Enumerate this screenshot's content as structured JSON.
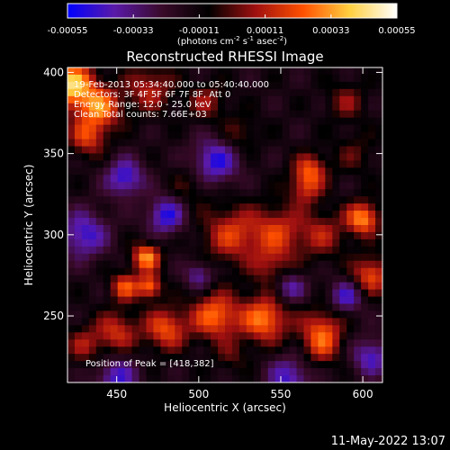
{
  "chart_data": {
    "type": "heatmap",
    "title": "Reconstructed RHESSI Image",
    "xlabel": "Heliocentric X (arcsec)",
    "ylabel": "Heliocentric Y (arcsec)",
    "xlim": [
      420,
      612
    ],
    "ylim": [
      209,
      403
    ],
    "x_ticks": [
      450,
      500,
      550,
      600
    ],
    "y_ticks": [
      250,
      300,
      350,
      400
    ],
    "colorbar": {
      "range": [
        -0.00055,
        0.00055
      ],
      "tick_values": [
        -0.00055,
        -0.00033,
        -0.00011,
        0.00011,
        0.00033,
        0.00055
      ],
      "tick_labels": [
        "-0.00055",
        "-0.00033",
        "-0.00011",
        "0.00011",
        "0.00033",
        "0.00055"
      ],
      "unit_label": "(photons cm",
      "unit_exp1": "-2",
      "unit_mid": " s",
      "unit_exp2": "-1",
      "unit_mid2": " asec",
      "unit_exp3": "-2",
      "unit_end": ")",
      "colors": [
        "#0000ff",
        "#5a1aa8",
        "#3a0a2a",
        "#000000",
        "#a01010",
        "#ff5000",
        "#ffd040",
        "#ffffff"
      ]
    },
    "annotations": [
      "19-Feb-2013 05:34:40.000 to 05:40:40.000",
      "Detectors: 3F 4F 5F 6F 7F 8F, Att 0",
      "Energy Range: 12.0 - 25.0 keV",
      "Clean     Total counts: 7.66E+03"
    ],
    "peak_label": "Position of Peak = [418,382]",
    "blobs": [
      {
        "x": 422,
        "y": 392,
        "v": 0.00055,
        "s": 10
      },
      {
        "x": 440,
        "y": 378,
        "v": 0.0004,
        "s": 9
      },
      {
        "x": 432,
        "y": 360,
        "v": 0.0003,
        "s": 8
      },
      {
        "x": 470,
        "y": 390,
        "v": 0.00025,
        "s": 10
      },
      {
        "x": 505,
        "y": 382,
        "v": 0.0002,
        "s": 8
      },
      {
        "x": 525,
        "y": 362,
        "v": 0.00015,
        "s": 8
      },
      {
        "x": 568,
        "y": 340,
        "v": 0.00032,
        "s": 7
      },
      {
        "x": 565,
        "y": 328,
        "v": 0.00025,
        "s": 7
      },
      {
        "x": 590,
        "y": 382,
        "v": 0.00018,
        "s": 8
      },
      {
        "x": 468,
        "y": 286,
        "v": 0.00045,
        "s": 6
      },
      {
        "x": 455,
        "y": 268,
        "v": 0.00035,
        "s": 6
      },
      {
        "x": 470,
        "y": 268,
        "v": 0.0004,
        "s": 5
      },
      {
        "x": 520,
        "y": 300,
        "v": 0.0003,
        "s": 12
      },
      {
        "x": 548,
        "y": 302,
        "v": 0.00028,
        "s": 11
      },
      {
        "x": 575,
        "y": 300,
        "v": 0.00022,
        "s": 10
      },
      {
        "x": 545,
        "y": 280,
        "v": 0.0002,
        "s": 9
      },
      {
        "x": 600,
        "y": 310,
        "v": 0.00045,
        "s": 7
      },
      {
        "x": 605,
        "y": 275,
        "v": 0.00035,
        "s": 8
      },
      {
        "x": 510,
        "y": 250,
        "v": 0.0004,
        "s": 10
      },
      {
        "x": 540,
        "y": 248,
        "v": 0.00042,
        "s": 10
      },
      {
        "x": 480,
        "y": 242,
        "v": 0.00035,
        "s": 9
      },
      {
        "x": 450,
        "y": 240,
        "v": 0.00028,
        "s": 9
      },
      {
        "x": 575,
        "y": 242,
        "v": 0.0003,
        "s": 9
      },
      {
        "x": 430,
        "y": 232,
        "v": 0.0002,
        "s": 8
      },
      {
        "x": 520,
        "y": 225,
        "v": 0.00012,
        "s": 7
      },
      {
        "x": 575,
        "y": 230,
        "v": 0.0002,
        "s": 8
      },
      {
        "x": 495,
        "y": 330,
        "v": 0.00012,
        "s": 9
      },
      {
        "x": 595,
        "y": 350,
        "v": 0.00012,
        "s": 9
      },
      {
        "x": 455,
        "y": 335,
        "v": -0.00035,
        "s": 8
      },
      {
        "x": 510,
        "y": 345,
        "v": -0.00035,
        "s": 10
      },
      {
        "x": 430,
        "y": 300,
        "v": -0.00033,
        "s": 10
      },
      {
        "x": 480,
        "y": 312,
        "v": -0.00035,
        "s": 8
      },
      {
        "x": 590,
        "y": 262,
        "v": -0.0003,
        "s": 7
      },
      {
        "x": 555,
        "y": 268,
        "v": -0.00028,
        "s": 7
      },
      {
        "x": 450,
        "y": 212,
        "v": -0.0003,
        "s": 9
      },
      {
        "x": 555,
        "y": 212,
        "v": -0.0003,
        "s": 9
      },
      {
        "x": 605,
        "y": 225,
        "v": -0.0003,
        "s": 8
      },
      {
        "x": 500,
        "y": 275,
        "v": -0.00025,
        "s": 6
      }
    ]
  },
  "footer_timestamp": "11-May-2022 13:07"
}
